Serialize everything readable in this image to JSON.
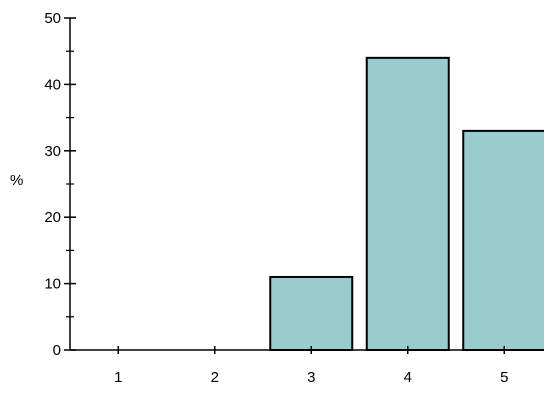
{
  "chart_data": {
    "type": "bar",
    "title": "",
    "xlabel": "",
    "ylabel": "%",
    "categories": [
      "1",
      "2",
      "3",
      "4",
      "5"
    ],
    "values": [
      0,
      0,
      11,
      44,
      33
    ],
    "ylim": [
      0,
      50
    ],
    "yticks_major": [
      0,
      10,
      20,
      30,
      40,
      50
    ],
    "yticks_minor": [
      5,
      15,
      25,
      35,
      45
    ],
    "grid": false,
    "legend": "none",
    "colors": {
      "bar_fill": "#99cccc",
      "bar_stroke": "#000000",
      "axis": "#000000"
    }
  }
}
